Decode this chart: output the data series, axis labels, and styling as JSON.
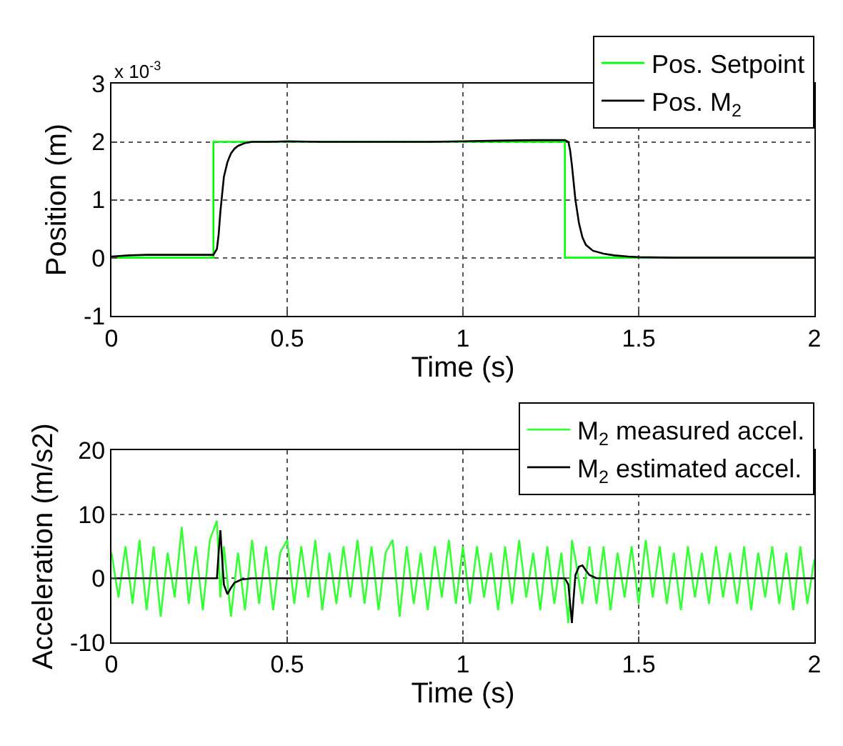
{
  "chart_data": [
    {
      "type": "line",
      "xlabel": "Time (s)",
      "ylabel": "Position (m)",
      "annotations": [
        "x 10$^{-3}$"
      ],
      "xlim": [
        0,
        2
      ],
      "xticks": [
        0,
        0.5,
        1,
        1.5,
        2
      ],
      "ylim": [
        -1,
        3
      ],
      "yticks": [
        -1,
        0,
        1,
        2,
        3
      ],
      "grid": true,
      "legend": "top right",
      "marker": "none",
      "line_style": "solid",
      "series": [
        {
          "name": "Pos. Setpoint",
          "color": "#00ff00",
          "x": [
            0,
            0.29,
            0.29,
            1.29,
            1.29,
            2
          ],
          "values": [
            0,
            0,
            2,
            2,
            0,
            0
          ]
        },
        {
          "name": "Pos. M$_{2}$",
          "color": "#000000",
          "x": [
            0,
            0.05,
            0.1,
            0.2,
            0.29,
            0.3,
            0.305,
            0.31,
            0.315,
            0.32,
            0.33,
            0.34,
            0.35,
            0.36,
            0.38,
            0.4,
            0.45,
            0.5,
            0.6,
            0.7,
            0.8,
            0.9,
            1.0,
            1.1,
            1.2,
            1.29,
            1.3,
            1.305,
            1.31,
            1.315,
            1.32,
            1.33,
            1.34,
            1.35,
            1.37,
            1.4,
            1.43,
            1.47,
            1.5,
            1.6,
            1.7,
            1.8,
            1.9,
            2.0
          ],
          "values": [
            0.02,
            0.04,
            0.05,
            0.05,
            0.05,
            0.15,
            0.4,
            0.8,
            1.1,
            1.4,
            1.65,
            1.8,
            1.88,
            1.93,
            1.98,
            2.0,
            2.0,
            2.01,
            2.0,
            2.0,
            2.0,
            2.0,
            2.01,
            2.02,
            2.03,
            2.03,
            2.0,
            1.85,
            1.6,
            1.3,
            1.0,
            0.6,
            0.35,
            0.22,
            0.12,
            0.07,
            0.04,
            0.02,
            0.01,
            0.0,
            0.0,
            0.0,
            0.0,
            0.0
          ]
        }
      ]
    },
    {
      "type": "line",
      "xlabel": "Time (s)",
      "ylabel": "Acceleration (m/s2)",
      "xlim": [
        0,
        2
      ],
      "xticks": [
        0,
        0.5,
        1,
        1.5,
        2
      ],
      "ylim": [
        -10,
        20
      ],
      "yticks": [
        -10,
        0,
        10,
        20
      ],
      "grid": true,
      "legend": "top right",
      "marker": "none",
      "line_style": "solid",
      "series": [
        {
          "name": "M$_{2}$ measured accel.",
          "color": "#33ff33",
          "x": [
            0,
            0.02,
            0.04,
            0.06,
            0.08,
            0.1,
            0.12,
            0.14,
            0.16,
            0.18,
            0.2,
            0.22,
            0.24,
            0.26,
            0.28,
            0.3,
            0.31,
            0.32,
            0.34,
            0.36,
            0.38,
            0.4,
            0.42,
            0.44,
            0.46,
            0.48,
            0.5,
            0.52,
            0.54,
            0.56,
            0.58,
            0.6,
            0.62,
            0.64,
            0.66,
            0.68,
            0.7,
            0.72,
            0.74,
            0.76,
            0.78,
            0.8,
            0.82,
            0.84,
            0.86,
            0.88,
            0.9,
            0.92,
            0.94,
            0.96,
            0.98,
            1.0,
            1.02,
            1.04,
            1.06,
            1.08,
            1.1,
            1.12,
            1.14,
            1.16,
            1.18,
            1.2,
            1.22,
            1.24,
            1.26,
            1.28,
            1.3,
            1.31,
            1.32,
            1.34,
            1.36,
            1.38,
            1.4,
            1.42,
            1.44,
            1.46,
            1.48,
            1.5,
            1.52,
            1.54,
            1.56,
            1.58,
            1.6,
            1.62,
            1.64,
            1.66,
            1.68,
            1.7,
            1.72,
            1.74,
            1.76,
            1.78,
            1.8,
            1.82,
            1.84,
            1.86,
            1.88,
            1.9,
            1.92,
            1.94,
            1.96,
            1.98,
            2.0
          ],
          "values": [
            4,
            -3,
            5,
            -4,
            6,
            -5,
            5,
            -6,
            4,
            -3,
            8,
            -4,
            5,
            -5,
            6,
            9,
            -3,
            5,
            -6,
            4,
            -5,
            6,
            -4,
            5,
            -5,
            4,
            6,
            -4,
            5,
            -3,
            6,
            -5,
            4,
            -4,
            5,
            -3,
            6,
            -4,
            5,
            -5,
            4,
            6,
            -6,
            5,
            -4,
            4,
            -5,
            5,
            -3,
            6,
            -4,
            5,
            -4,
            5,
            -3,
            4,
            -5,
            5,
            -4,
            6,
            -3,
            4,
            -5,
            5,
            -4,
            4,
            -7,
            6,
            3,
            -4,
            5,
            -4,
            5,
            -5,
            4,
            -3,
            5,
            -4,
            6,
            -3,
            5,
            -4,
            4,
            -5,
            5,
            -3,
            4,
            -4,
            5,
            -3,
            4,
            -4,
            5,
            -5,
            4,
            -3,
            5,
            -4,
            4,
            -5,
            5,
            -4,
            3
          ]
        },
        {
          "name": "M$_{2}$ estimated accel.",
          "color": "#000000",
          "x": [
            0,
            0.1,
            0.2,
            0.3,
            0.305,
            0.31,
            0.315,
            0.32,
            0.33,
            0.34,
            0.35,
            0.37,
            0.4,
            0.5,
            0.6,
            0.7,
            0.8,
            0.9,
            1.0,
            1.1,
            1.2,
            1.29,
            1.3,
            1.305,
            1.31,
            1.315,
            1.32,
            1.33,
            1.34,
            1.35,
            1.36,
            1.38,
            1.4,
            1.5,
            1.6,
            1.7,
            1.8,
            1.9,
            2.0
          ],
          "values": [
            0,
            0,
            0,
            0,
            4,
            7.5,
            3,
            -1,
            -2.5,
            -1.5,
            -0.7,
            -0.2,
            0,
            0,
            0,
            0,
            0,
            0,
            0,
            0,
            0,
            0,
            -1,
            -4,
            -7,
            -3,
            0.5,
            1.8,
            2,
            1.2,
            0.5,
            0,
            0,
            0,
            0,
            0,
            0,
            0,
            0
          ]
        }
      ]
    }
  ]
}
